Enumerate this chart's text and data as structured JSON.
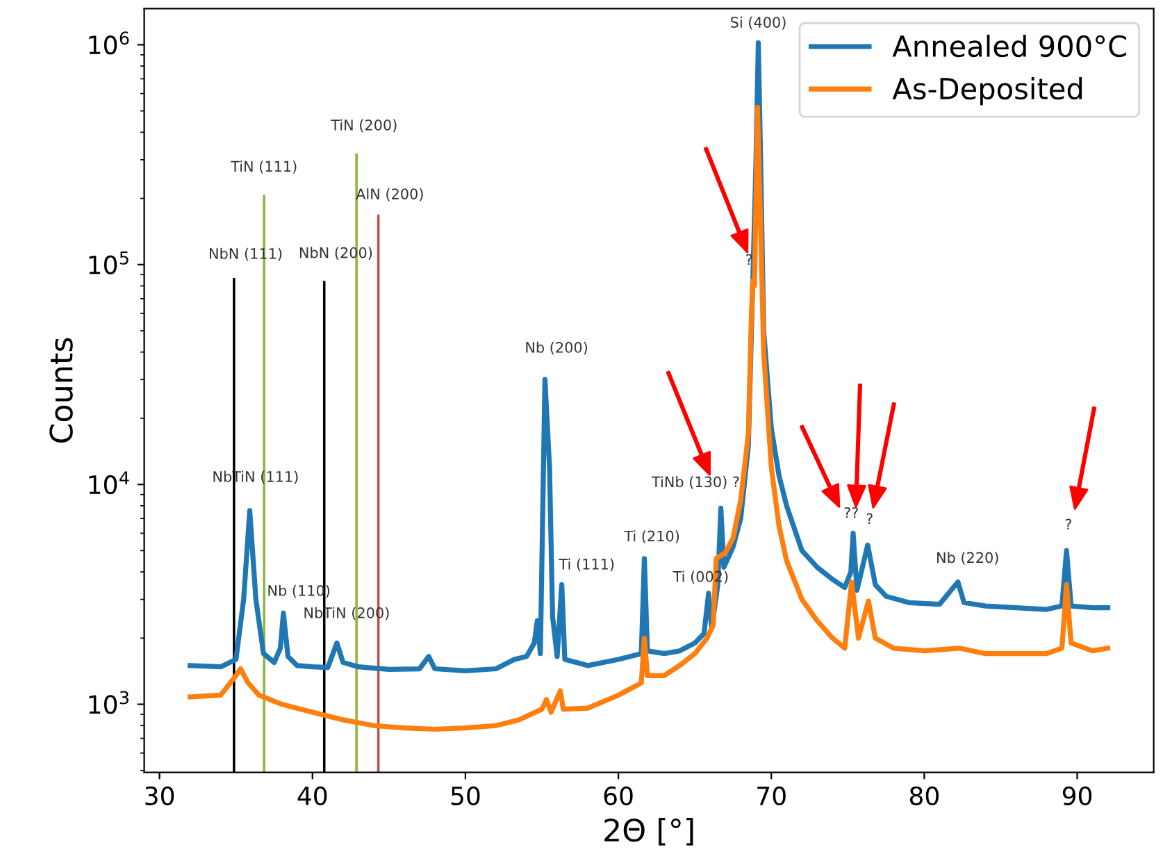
{
  "chart_data": {
    "type": "line",
    "xlabel": "2Θ [°]",
    "ylabel": "Counts",
    "log": "y",
    "grid": false,
    "legend": "top right",
    "xlim": [
      29,
      95
    ],
    "xticks": [
      30,
      40,
      50,
      60,
      70,
      80,
      90
    ],
    "ylim": [
      490,
      1460000
    ],
    "yticks": [
      {
        "value": 1000,
        "label": "10$^{3}$"
      },
      {
        "value": 10000,
        "label": "10$^{4}$"
      },
      {
        "value": 100000,
        "label": "10$^{5}$"
      },
      {
        "value": 1000000,
        "label": "10$^{6}$"
      }
    ],
    "series": [
      {
        "name": "Annealed 900°C",
        "color": "#1f77b4",
        "x": [
          32,
          34,
          35,
          35.5,
          35.9,
          36.3,
          36.8,
          37.5,
          37.9,
          38.1,
          38.4,
          39,
          40,
          41,
          41.6,
          42,
          43,
          45,
          47,
          47.6,
          48,
          50,
          52,
          53.2,
          54,
          54.5,
          54.7,
          54.9,
          55.2,
          55.5,
          55.7,
          56.0,
          56.3,
          56.5,
          58,
          60,
          61.5,
          61.7,
          61.9,
          63,
          64,
          65,
          65.6,
          65.9,
          66.1,
          66.5,
          66.7,
          66.9,
          67.5,
          68,
          68.5,
          68.8,
          69.0,
          69.15,
          69.3,
          69.5,
          70,
          70.5,
          71,
          72,
          73,
          74,
          74.8,
          75.2,
          75.35,
          75.6,
          76.3,
          76.8,
          77.5,
          79,
          81,
          82.2,
          82.6,
          84,
          86,
          88,
          89.0,
          89.3,
          89.6,
          91,
          92
        ],
        "values": [
          1500,
          1480,
          1600,
          3000,
          7600,
          3000,
          1700,
          1550,
          1800,
          2600,
          1650,
          1500,
          1480,
          1470,
          1900,
          1550,
          1480,
          1440,
          1450,
          1650,
          1450,
          1420,
          1450,
          1600,
          1650,
          1900,
          2400,
          1700,
          30000,
          12000,
          2500,
          1650,
          3500,
          1600,
          1500,
          1600,
          1700,
          4600,
          1750,
          1700,
          1750,
          1900,
          2100,
          3200,
          2200,
          3500,
          7800,
          4200,
          5200,
          7000,
          15000,
          90000,
          300000,
          1020000,
          300000,
          50000,
          18000,
          11000,
          8000,
          5000,
          4200,
          3700,
          3400,
          4000,
          6000,
          3300,
          5300,
          3500,
          3100,
          2900,
          2850,
          3600,
          2900,
          2800,
          2750,
          2700,
          2800,
          5000,
          2800,
          2750,
          2750
        ]
      },
      {
        "name": "As-Deposited",
        "color": "#ff7f0e",
        "x": [
          32,
          34,
          35,
          35.3,
          35.8,
          36.5,
          38,
          40,
          42,
          44,
          46,
          48,
          50,
          52,
          53.5,
          55,
          55.3,
          55.6,
          56.2,
          56.4,
          58,
          60,
          61.5,
          61.7,
          61.9,
          63,
          64,
          65,
          65.8,
          66.2,
          66.4,
          67,
          67.5,
          68,
          68.5,
          68.7,
          68.8,
          68.9,
          69.0,
          69.1,
          69.3,
          69.5,
          70,
          70.5,
          71,
          72,
          73,
          74,
          74.8,
          75.25,
          75.7,
          76.35,
          76.8,
          78,
          80,
          82.3,
          84,
          86,
          88,
          89.0,
          89.3,
          89.6,
          91,
          92
        ],
        "values": [
          1080,
          1100,
          1350,
          1450,
          1250,
          1100,
          1000,
          920,
          850,
          800,
          780,
          770,
          780,
          800,
          850,
          950,
          1050,
          920,
          1150,
          950,
          960,
          1100,
          1250,
          2000,
          1350,
          1350,
          1500,
          1700,
          2000,
          2300,
          4600,
          4900,
          5700,
          8500,
          17000,
          60000,
          85000,
          80000,
          200000,
          520000,
          150000,
          40000,
          12000,
          6500,
          4500,
          3000,
          2400,
          2000,
          1800,
          3600,
          2000,
          2950,
          2000,
          1800,
          1750,
          1800,
          1700,
          1700,
          1700,
          1800,
          3500,
          1900,
          1750,
          1800
        ]
      },
      {
        "type": "bar",
        "color": "#000000",
        "x": [
          34.87
        ],
        "values": [
          86900
        ]
      },
      {
        "type": "bar",
        "color": "#8db53c",
        "x": [
          36.84
        ],
        "values": [
          208000
        ]
      },
      {
        "type": "bar",
        "color": "#000000",
        "x": [
          40.77
        ],
        "values": [
          84300
        ]
      },
      {
        "type": "bar",
        "color": "#8db53c",
        "x": [
          42.88
        ],
        "values": [
          321000
        ]
      },
      {
        "type": "bar",
        "color": "#c0504d",
        "x": [
          44.31
        ],
        "values": [
          169000
        ]
      }
    ],
    "annotations": [
      {
        "text": "NbTiN (111)",
        "x": 35.9,
        "y": 7600
      },
      {
        "text": "Nb (110)",
        "x": 38.1,
        "y": 2600
      },
      {
        "text": "NbTiN (200)",
        "x": 41.6,
        "y": 1900
      },
      {
        "text": "Nb (200)",
        "x": 55.2,
        "y": 30000
      },
      {
        "text": "Ti (111)",
        "x": 56.3,
        "y": 3500
      },
      {
        "text": "Ti (210)",
        "x": 61.7,
        "y": 4600
      },
      {
        "text": "Ti (002)",
        "x": 65.9,
        "y": 3200
      },
      {
        "text": "TiNb (130) ?",
        "x": 66.7,
        "y": 7800
      },
      {
        "text": "Si (400)",
        "x": 69.15,
        "y": 1020000
      },
      {
        "text": "?",
        "x": 68.8,
        "y": 85000
      },
      {
        "text": "??",
        "x": 75.35,
        "y": 6000
      },
      {
        "text": "?",
        "x": 76.3,
        "y": 5300
      },
      {
        "text": "Nb (220)",
        "x": 82.2,
        "y": 3600
      },
      {
        "text": "?",
        "x": 89.3,
        "y": 5000
      },
      {
        "text": "NbN (111)",
        "x": 34.87,
        "y": 86900
      },
      {
        "text": "TiN (111)",
        "x": 36.84,
        "y": 208000
      },
      {
        "text": "NbN (200)",
        "x": 40.77,
        "y": 84300
      },
      {
        "text": "TiN (200)",
        "x": 42.88,
        "y": 321000
      },
      {
        "text": "AlN (200)",
        "x": 44.31,
        "y": 169000
      }
    ]
  }
}
